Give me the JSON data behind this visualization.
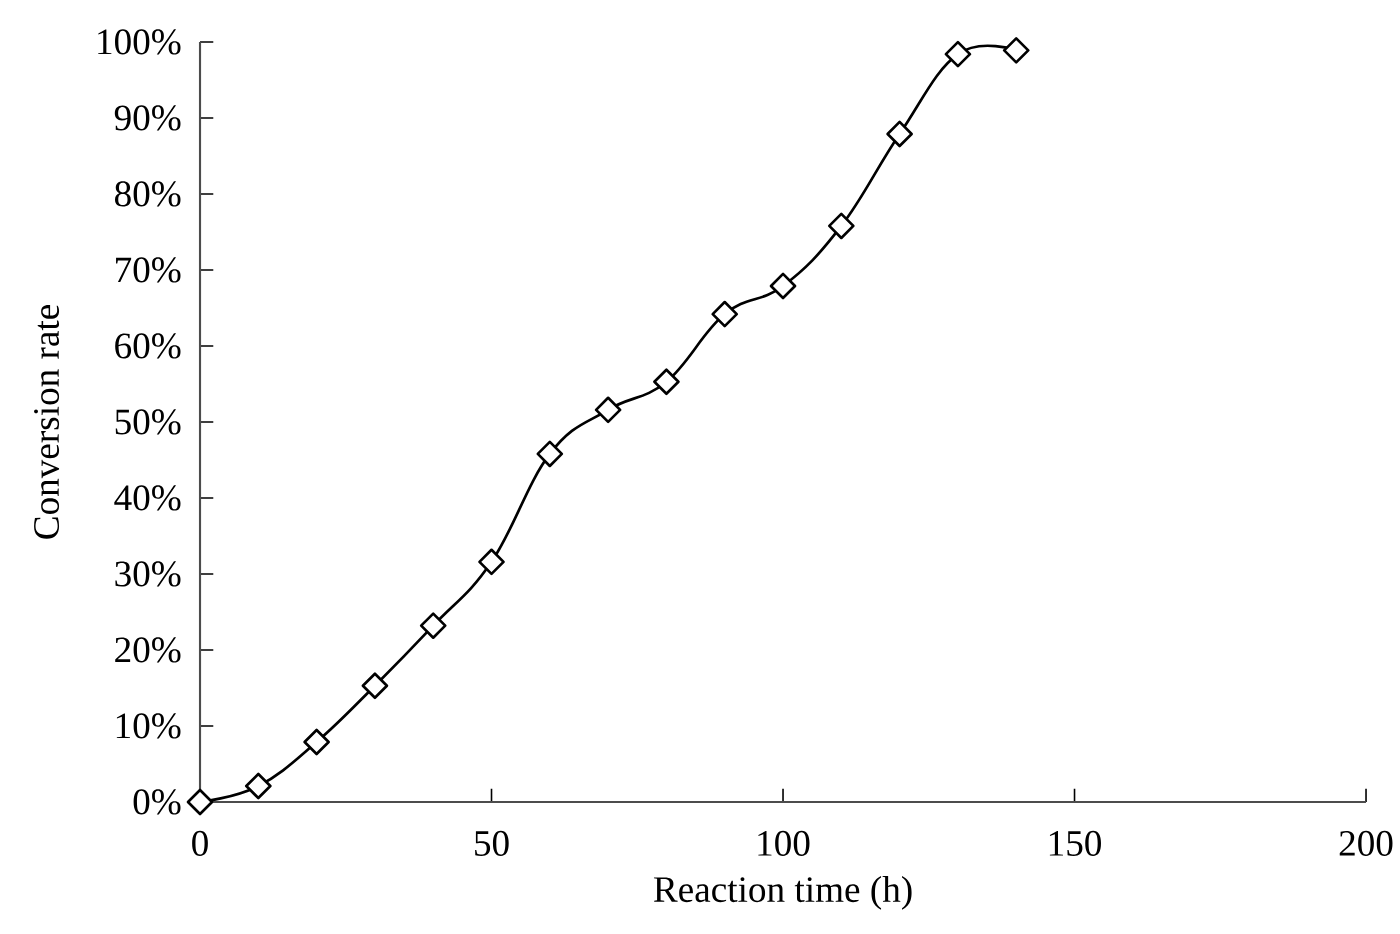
{
  "chart_data": {
    "type": "line",
    "xlabel": "Reaction time (h)",
    "ylabel": "Conversion rate",
    "x": [
      0,
      10,
      20,
      30,
      40,
      50,
      60,
      70,
      80,
      90,
      100,
      110,
      120,
      130,
      140
    ],
    "series": [
      {
        "color": "#000000",
        "values": [
          0,
          2.1,
          7.9,
          15.3,
          23.2,
          31.6,
          45.8,
          51.6,
          55.3,
          64.2,
          67.9,
          75.8,
          87.9,
          98.4,
          98.9
        ]
      }
    ],
    "xlim": [
      0,
      200
    ],
    "ylim": [
      0,
      100
    ],
    "xticks": [
      0,
      50,
      100,
      150,
      200
    ],
    "yticks": [
      {
        "value": 0,
        "label": "0%"
      },
      {
        "value": 10,
        "label": "10%"
      },
      {
        "value": 20,
        "label": "20%"
      },
      {
        "value": 30,
        "label": "30%"
      },
      {
        "value": 40,
        "label": "40%"
      },
      {
        "value": 50,
        "label": "50%"
      },
      {
        "value": 60,
        "label": "60%"
      },
      {
        "value": 70,
        "label": "70%"
      },
      {
        "value": 80,
        "label": "80%"
      },
      {
        "value": 90,
        "label": "90%"
      },
      {
        "value": 100,
        "label": "100%"
      }
    ],
    "marker": "diamond",
    "line_style": "solid"
  }
}
